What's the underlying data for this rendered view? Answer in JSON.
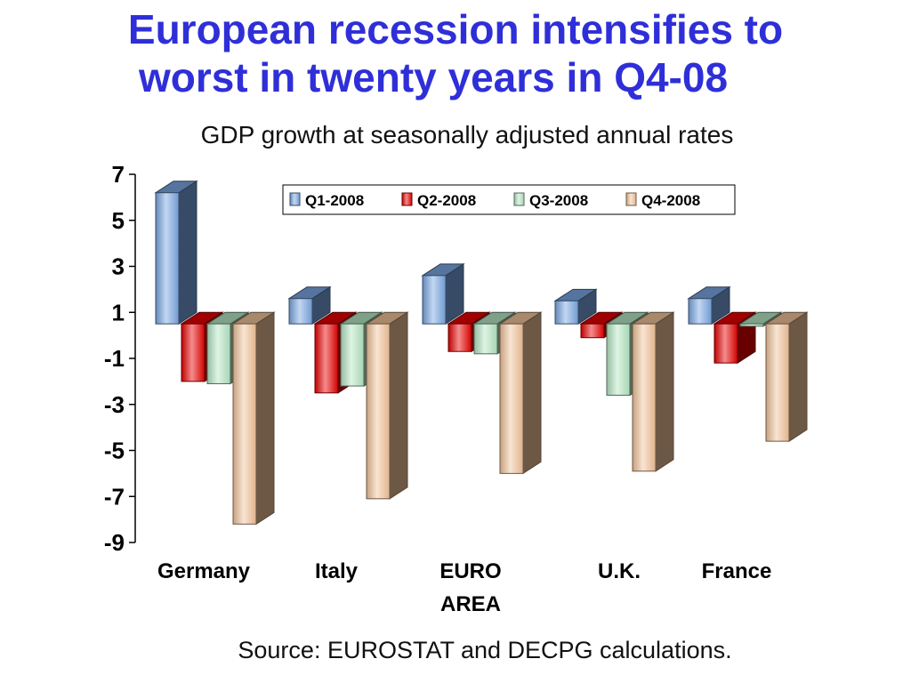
{
  "title": {
    "line1": "European recession intensifies to",
    "line2": "worst in twenty years in Q4-08"
  },
  "subtitle": "GDP growth at seasonally adjusted annual rates",
  "source": "Source: EUROSTAT and DECPG calculations.",
  "colors": {
    "title": "#2f2fd8",
    "series": [
      "#7aa7e3",
      "#e60000",
      "#b5e6c4",
      "#f2c49a"
    ]
  },
  "chart_data": {
    "type": "bar",
    "title": "",
    "xlabel": "",
    "ylabel": "",
    "ylim": [
      -9,
      7
    ],
    "yticks": [
      7,
      5,
      3,
      1,
      -1,
      -3,
      -5,
      -7,
      -9
    ],
    "ytick_labels": [
      "7",
      "5",
      "3",
      "1",
      "-1",
      "-3",
      "-5",
      "-7",
      "-9"
    ],
    "baseline": 0.5,
    "categories": [
      "Germany",
      "Italy",
      "EURO AREA",
      "U.K.",
      "France"
    ],
    "category_lines": [
      [
        "Germany"
      ],
      [
        "Italy"
      ],
      [
        "EURO",
        "AREA"
      ],
      [
        "U.K."
      ],
      [
        "France"
      ]
    ],
    "series": [
      {
        "name": "Q1-2008",
        "values": [
          6.2,
          1.6,
          2.6,
          1.5,
          1.6
        ]
      },
      {
        "name": "Q2-2008",
        "values": [
          -2.0,
          -2.5,
          -0.7,
          -0.1,
          -1.2
        ]
      },
      {
        "name": "Q3-2008",
        "values": [
          -2.1,
          -2.2,
          -0.8,
          -2.6,
          0.4
        ]
      },
      {
        "name": "Q4-2008",
        "values": [
          -8.2,
          -7.1,
          -6.0,
          -5.9,
          -4.6
        ]
      }
    ],
    "legend": "top-right",
    "grid": false,
    "bar_style": "3d"
  }
}
